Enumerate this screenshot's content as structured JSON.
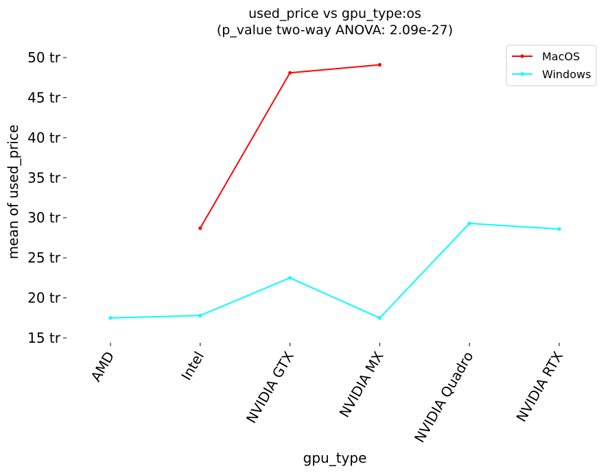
{
  "chart_data": {
    "type": "line",
    "title_line1": "used_price vs gpu_type:os",
    "title_line2": "(p_value two-way ANOVA: 2.09e-27)",
    "xlabel": "gpu_type",
    "ylabel": "mean of used_price",
    "categories": [
      "AMD",
      "Intel",
      "NVIDIA GTX",
      "NVIDIA MX",
      "NVIDIA Quadro",
      "NVIDIA RTX"
    ],
    "y_ticks": [
      {
        "value": 15,
        "label": "15 tr"
      },
      {
        "value": 20,
        "label": "20 tr"
      },
      {
        "value": 25,
        "label": "25 tr"
      },
      {
        "value": 30,
        "label": "30 tr"
      },
      {
        "value": 35,
        "label": "35 tr"
      },
      {
        "value": 40,
        "label": "40 tr"
      },
      {
        "value": 45,
        "label": "45 tr"
      },
      {
        "value": 50,
        "label": "50 tr"
      }
    ],
    "ylim": [
      15,
      50
    ],
    "grid": false,
    "legend_position": "top-right",
    "series": [
      {
        "name": "MacOS",
        "color": "#ff0000",
        "values": [
          null,
          28.7,
          48.1,
          49.1,
          null,
          null
        ]
      },
      {
        "name": "Windows",
        "color": "#00ffff",
        "values": [
          17.5,
          17.8,
          22.5,
          17.5,
          29.3,
          28.6
        ]
      }
    ]
  }
}
